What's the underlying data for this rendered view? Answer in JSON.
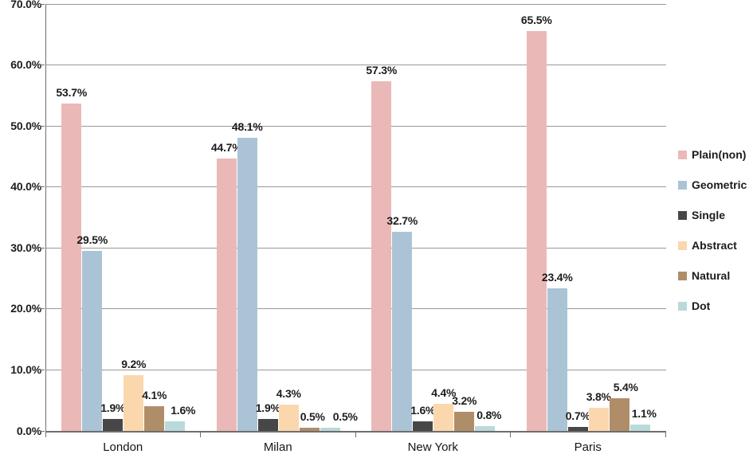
{
  "chart_data": {
    "type": "bar",
    "title": "",
    "xlabel": "",
    "ylabel": "",
    "categories": [
      "London",
      "Milan",
      "New York",
      "Paris"
    ],
    "series": [
      {
        "name": "Plain(non)",
        "color": "#eab9b7",
        "values": [
          53.7,
          44.7,
          57.3,
          65.5
        ]
      },
      {
        "name": "Geometric",
        "color": "#aac4d6",
        "values": [
          29.5,
          48.1,
          32.7,
          23.4
        ]
      },
      {
        "name": "Single",
        "color": "#474747",
        "values": [
          1.9,
          1.9,
          1.6,
          0.7
        ]
      },
      {
        "name": "Abstract",
        "color": "#fbd7ae",
        "values": [
          9.2,
          4.3,
          4.4,
          3.8
        ]
      },
      {
        "name": "Natural",
        "color": "#b08d69",
        "values": [
          4.1,
          0.5,
          3.2,
          5.4
        ]
      },
      {
        "name": "Dot",
        "color": "#b9d9da",
        "values": [
          1.6,
          0.5,
          0.8,
          1.1
        ]
      }
    ],
    "data_label_format": "one_decimal_percent",
    "ylim": [
      0,
      70
    ],
    "ytick_step": 10,
    "y_tick_labels": [
      "0.0%",
      "10.0%",
      "20.0%",
      "30.0%",
      "40.0%",
      "50.0%",
      "60.0%",
      "70.0%"
    ],
    "grid": true,
    "gridline_color": "#999999",
    "axis_color": "#6e6e6e",
    "legend_position": "right",
    "background_color": "#ffffff"
  }
}
